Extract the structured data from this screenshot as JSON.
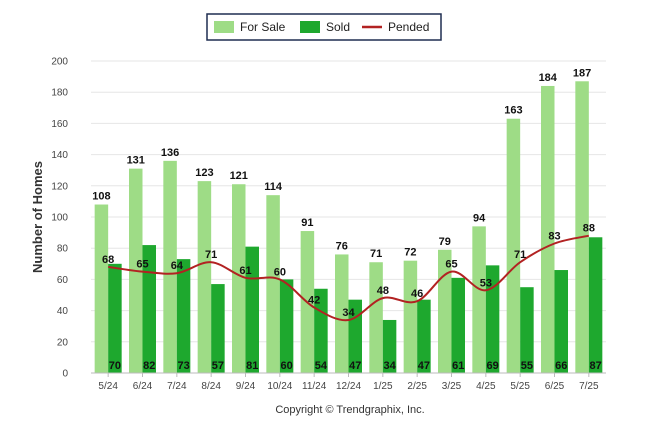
{
  "chart_data": {
    "type": "bar",
    "categories": [
      "5/24",
      "6/24",
      "7/24",
      "8/24",
      "9/24",
      "10/24",
      "11/24",
      "12/24",
      "1/25",
      "2/25",
      "3/25",
      "4/25",
      "5/25",
      "6/25",
      "7/25"
    ],
    "series": [
      {
        "name": "For Sale",
        "kind": "bar",
        "color": "#9edc86",
        "values": [
          108,
          131,
          136,
          123,
          121,
          114,
          91,
          76,
          71,
          72,
          79,
          94,
          163,
          184,
          187
        ]
      },
      {
        "name": "Sold",
        "kind": "bar",
        "color": "#1ea82e",
        "values": [
          70,
          82,
          73,
          57,
          81,
          60,
          54,
          47,
          34,
          47,
          61,
          69,
          55,
          66,
          87
        ]
      },
      {
        "name": "Pended",
        "kind": "line",
        "color": "#b22222",
        "values": [
          68,
          65,
          64,
          71,
          61,
          60,
          42,
          34,
          48,
          46,
          65,
          53,
          71,
          83,
          88
        ]
      }
    ],
    "title": "",
    "xlabel": "",
    "ylabel": "Number of Homes",
    "ylim": [
      0,
      200
    ],
    "yticks": [
      0,
      20,
      40,
      60,
      80,
      100,
      120,
      140,
      160,
      180,
      200
    ],
    "grid": true,
    "legend_position": "top-center"
  },
  "footer": "Copyright © Trendgraphix, Inc."
}
